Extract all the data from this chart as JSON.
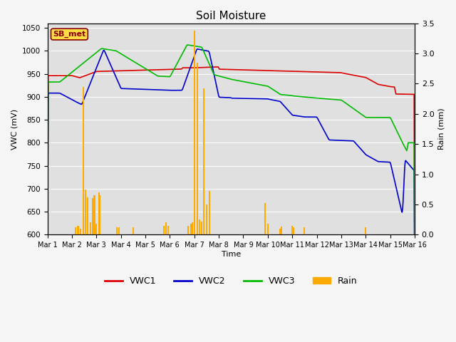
{
  "title": "Soil Moisture",
  "xlabel": "Time",
  "ylabel_left": "VWC (mV)",
  "ylabel_right": "Rain (mm)",
  "ylim_left": [
    600,
    1060
  ],
  "ylim_right": [
    0.0,
    3.5
  ],
  "yticks_left": [
    600,
    650,
    700,
    750,
    800,
    850,
    900,
    950,
    1000,
    1050
  ],
  "yticks_right": [
    0.0,
    0.5,
    1.0,
    1.5,
    2.0,
    2.5,
    3.0,
    3.5
  ],
  "fig_bg_color": "#f5f5f5",
  "plot_bg_color": "#e0e0e0",
  "label_box_text": "SB_met",
  "label_box_facecolor": "#ffdd44",
  "label_box_edgecolor": "#8b0000",
  "colors": {
    "VWC1": "#dd0000",
    "VWC2": "#0000cc",
    "VWC3": "#00bb00",
    "Rain": "#ffaa00"
  },
  "x_tick_labels": [
    "Mar 1",
    "Mar 2",
    "Mar 3",
    "Mar 4",
    "Mar 5",
    "Mar 6",
    "Mar 7",
    "Mar 8",
    "Mar 9",
    "Mar 10",
    "Mar 11",
    "Mar 12",
    "Mar 13",
    "Mar 14",
    "Mar 15",
    "Mar 16"
  ]
}
